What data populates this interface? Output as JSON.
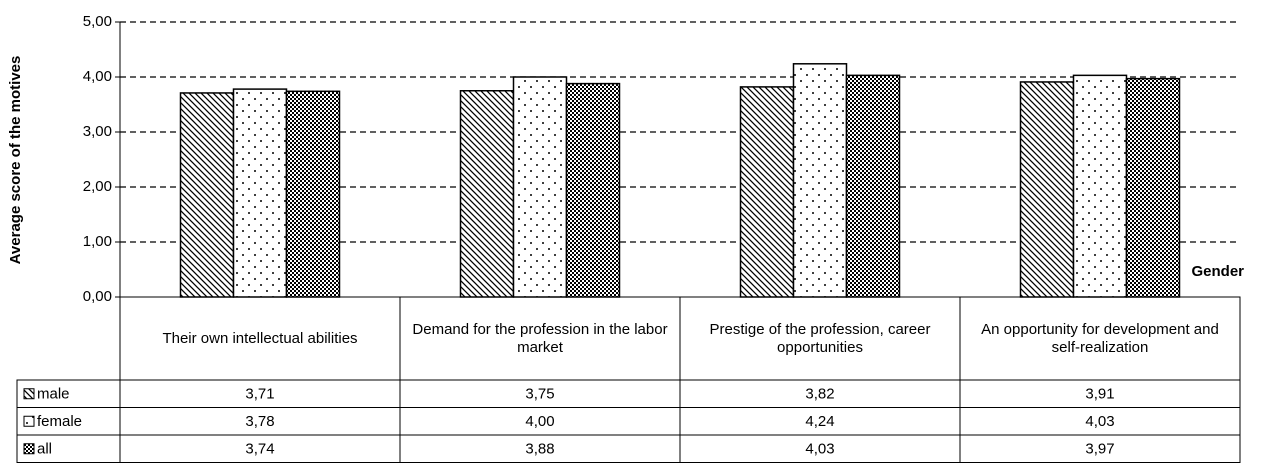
{
  "chart_data": {
    "type": "bar",
    "y_axis_label": "Average score of the motives",
    "x_axis_label": "Gender",
    "categories": [
      "Their own intellectual abilities",
      "Demand for the profession in the labor market",
      "Prestige of the profession, career opportunities",
      "An opportunity for development and self-realization"
    ],
    "series": [
      {
        "name": "male",
        "color": "#000000",
        "pattern": "diagonal",
        "values": [
          3.71,
          3.75,
          3.82,
          3.91
        ],
        "value_labels": [
          "3,71",
          "3,75",
          "3,82",
          "3,91"
        ]
      },
      {
        "name": "female",
        "color": "#000000",
        "pattern": "dots",
        "values": [
          3.78,
          4.0,
          4.24,
          4.03
        ],
        "value_labels": [
          "3,78",
          "4,00",
          "4,24",
          "4,03"
        ]
      },
      {
        "name": "all",
        "color": "#000000",
        "pattern": "checker",
        "values": [
          3.74,
          3.88,
          4.03,
          3.97
        ],
        "value_labels": [
          "3,74",
          "3,88",
          "4,03",
          "3,97"
        ]
      }
    ],
    "ylim": [
      0,
      5
    ],
    "yticks": [
      {
        "value": 0,
        "label": "0,00"
      },
      {
        "value": 1,
        "label": "1,00"
      },
      {
        "value": 2,
        "label": "2,00"
      },
      {
        "value": 3,
        "label": "3,00"
      },
      {
        "value": 4,
        "label": "4,00"
      },
      {
        "value": 5,
        "label": "5,00"
      }
    ],
    "grid": true
  }
}
